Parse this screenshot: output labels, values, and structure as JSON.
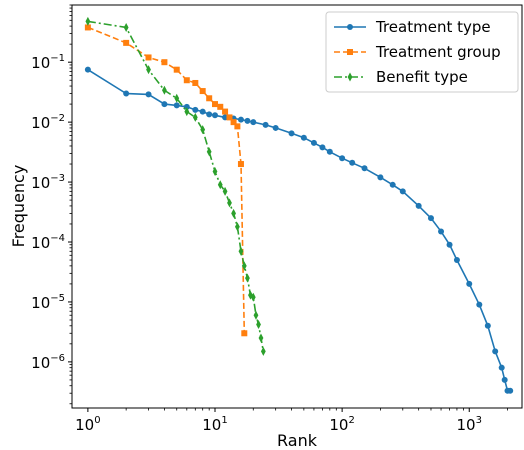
{
  "chart_data": {
    "type": "line",
    "xlabel": "Rank",
    "ylabel": "Frequency",
    "xscale": "log",
    "yscale": "log",
    "xlim": [
      0.75,
      2600
    ],
    "ylim": [
      1.7e-07,
      0.9
    ],
    "grid": false,
    "legend_position": "top-right",
    "x_ticks": [
      {
        "base": "10",
        "exp": "0",
        "value": 1
      },
      {
        "base": "10",
        "exp": "1",
        "value": 10
      },
      {
        "base": "10",
        "exp": "2",
        "value": 100
      },
      {
        "base": "10",
        "exp": "3",
        "value": 1000
      }
    ],
    "y_ticks": [
      {
        "base": "10",
        "exp": "−6",
        "value": 1e-06
      },
      {
        "base": "10",
        "exp": "−5",
        "value": 1e-05
      },
      {
        "base": "10",
        "exp": "−4",
        "value": 0.0001
      },
      {
        "base": "10",
        "exp": "−3",
        "value": 0.001
      },
      {
        "base": "10",
        "exp": "−2",
        "value": 0.01
      },
      {
        "base": "10",
        "exp": "−1",
        "value": 0.1
      }
    ],
    "series": [
      {
        "name": "Treatment type",
        "color": "#1f77b4",
        "dash": "solid",
        "marker": "circle",
        "x": [
          1,
          2,
          3,
          4,
          5,
          6,
          7,
          8,
          9,
          10,
          12,
          14,
          16,
          18,
          20,
          25,
          30,
          40,
          50,
          60,
          70,
          80,
          100,
          120,
          150,
          200,
          250,
          300,
          400,
          500,
          600,
          700,
          800,
          1000,
          1200,
          1400,
          1600,
          1800,
          1900,
          2000,
          2100
        ],
        "y": [
          0.075,
          0.03,
          0.029,
          0.02,
          0.019,
          0.018,
          0.016,
          0.015,
          0.0135,
          0.013,
          0.012,
          0.0115,
          0.011,
          0.0105,
          0.01,
          0.009,
          0.008,
          0.0065,
          0.0055,
          0.0045,
          0.0038,
          0.0032,
          0.0025,
          0.0021,
          0.0017,
          0.0012,
          0.0009,
          0.0007,
          0.0004,
          0.00025,
          0.00015,
          9e-05,
          5e-05,
          2e-05,
          9e-06,
          4e-06,
          1.5e-06,
          8e-07,
          5e-07,
          3.3e-07,
          3.3e-07
        ]
      },
      {
        "name": "Treatment group",
        "color": "#ff7f0e",
        "dash": "dashed",
        "marker": "square",
        "x": [
          1,
          2,
          3,
          4,
          5,
          6,
          7,
          8,
          9,
          10,
          11,
          12,
          13,
          14,
          15,
          16,
          17
        ],
        "y": [
          0.38,
          0.21,
          0.12,
          0.1,
          0.075,
          0.05,
          0.045,
          0.033,
          0.025,
          0.02,
          0.018,
          0.015,
          0.012,
          0.01,
          0.0085,
          0.002,
          3e-06
        ]
      },
      {
        "name": "Benefit type",
        "color": "#2ca02c",
        "dash": "dashdot",
        "marker": "thin_diamond",
        "x": [
          1,
          2,
          3,
          4,
          5,
          6,
          7,
          8,
          9,
          10,
          11,
          12,
          13,
          14,
          15,
          16,
          17,
          18,
          19,
          20,
          21,
          22,
          23,
          24
        ],
        "y": [
          0.48,
          0.38,
          0.075,
          0.034,
          0.025,
          0.015,
          0.012,
          0.0075,
          0.0032,
          0.0015,
          0.0009,
          0.0007,
          0.00045,
          0.0003,
          0.00018,
          7e-05,
          4e-05,
          2.5e-05,
          1.3e-05,
          1.2e-05,
          6e-06,
          4.2e-06,
          2.5e-06,
          1.5e-06
        ]
      }
    ]
  }
}
